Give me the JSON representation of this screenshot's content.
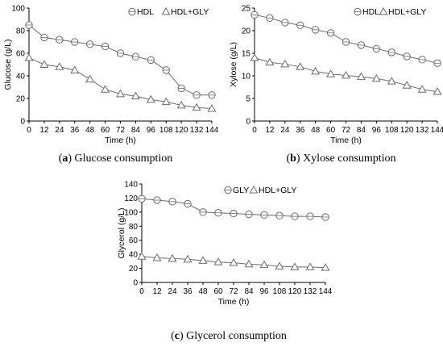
{
  "chart_data": [
    {
      "type": "line",
      "caption_prefix": "(a)",
      "caption_tag": "a",
      "caption_text": "Glucose consumption",
      "xlabel": "Time (h)",
      "ylabel": "Glucose (g/L)",
      "xlim": [
        0,
        144
      ],
      "ylim": [
        0,
        100
      ],
      "x_ticks": [
        0,
        12,
        24,
        36,
        48,
        60,
        72,
        84,
        96,
        108,
        120,
        132,
        144
      ],
      "y_ticks": [
        0,
        20,
        40,
        60,
        80,
        100
      ],
      "legend_position": "top-right",
      "grid": false,
      "x": [
        0,
        12,
        24,
        36,
        48,
        60,
        72,
        84,
        96,
        108,
        120,
        132,
        144
      ],
      "series": [
        {
          "name": "HDL",
          "marker": "circle",
          "values": [
            85,
            74,
            72,
            70,
            68,
            66,
            60,
            57,
            54,
            45,
            29,
            23,
            23
          ]
        },
        {
          "name": "HDL+GLY",
          "marker": "triangle",
          "values": [
            56,
            50,
            48,
            45,
            37,
            28,
            24,
            22,
            19,
            17,
            14,
            12,
            11
          ]
        }
      ]
    },
    {
      "type": "line",
      "caption_prefix": "(b)",
      "caption_tag": "b",
      "caption_text": "Xylose consumption",
      "xlabel": "Time (h)",
      "ylabel": "Xylose (g/L)",
      "xlim": [
        0,
        144
      ],
      "ylim": [
        0,
        25
      ],
      "x_ticks": [
        0,
        12,
        24,
        36,
        48,
        60,
        72,
        84,
        96,
        108,
        120,
        132,
        144
      ],
      "y_ticks": [
        0,
        5,
        10,
        15,
        20,
        25
      ],
      "legend_position": "top-right",
      "grid": false,
      "x": [
        0,
        12,
        24,
        36,
        48,
        60,
        72,
        84,
        96,
        108,
        120,
        132,
        144
      ],
      "series": [
        {
          "name": "HDL",
          "marker": "circle",
          "values": [
            23.5,
            22.8,
            21.8,
            21.2,
            20.2,
            19.5,
            17.5,
            16.8,
            16.0,
            15.2,
            14.3,
            13.6,
            12.8
          ]
        },
        {
          "name": "HDL+GLY",
          "marker": "triangle",
          "values": [
            14.0,
            13.0,
            12.6,
            12.0,
            11.0,
            10.4,
            10.1,
            9.8,
            9.4,
            8.8,
            7.9,
            7.0,
            6.5
          ]
        }
      ]
    },
    {
      "type": "line",
      "caption_prefix": "(c)",
      "caption_tag": "c",
      "caption_text": "Glycerol consumption",
      "xlabel": "Time (h)",
      "ylabel": "Glycerol (g/L)",
      "xlim": [
        0,
        144
      ],
      "ylim": [
        0,
        140
      ],
      "x_ticks": [
        0,
        12,
        24,
        36,
        48,
        60,
        72,
        84,
        96,
        108,
        120,
        132,
        144
      ],
      "y_ticks": [
        0,
        20,
        40,
        60,
        80,
        100,
        120,
        140
      ],
      "legend_position": "top-right",
      "grid": false,
      "x": [
        0,
        12,
        24,
        36,
        48,
        60,
        72,
        84,
        96,
        108,
        120,
        132,
        144
      ],
      "series": [
        {
          "name": "GLY",
          "marker": "circle",
          "values": [
            119,
            117,
            115,
            112,
            100,
            99,
            98,
            97,
            96,
            95,
            94,
            94,
            93
          ]
        },
        {
          "name": "HDL+GLY",
          "marker": "triangle",
          "values": [
            37,
            35,
            34,
            33,
            31,
            29,
            28,
            26,
            25,
            23,
            22,
            22,
            21
          ]
        }
      ]
    }
  ]
}
